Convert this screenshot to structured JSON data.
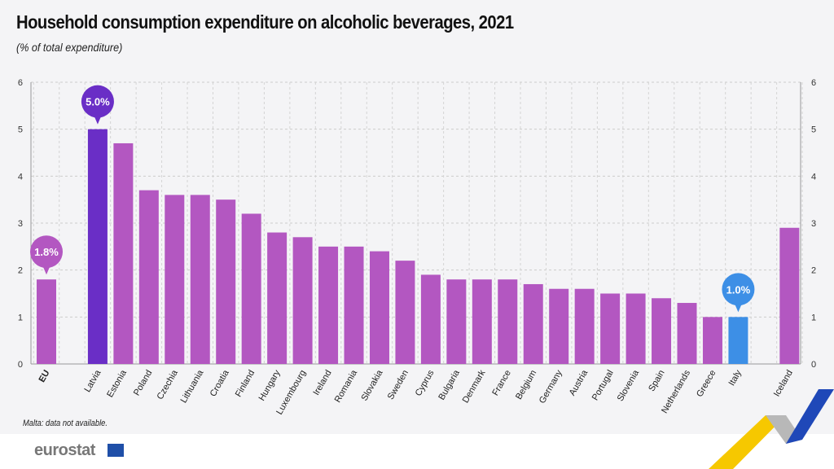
{
  "chart_data": {
    "type": "bar",
    "title": "Household consumption expenditure on alcoholic beverages, 2021",
    "subtitle": "(% of total expenditure)",
    "categories": [
      "EU",
      "Latvia",
      "Estonia",
      "Poland",
      "Czechia",
      "Lithuania",
      "Croatia",
      "Finland",
      "Hungary",
      "Luxembourg",
      "Ireland",
      "Romania",
      "Slovakia",
      "Sweden",
      "Cyprus",
      "Bulgaria",
      "Denmark",
      "France",
      "Belgium",
      "Germany",
      "Austria",
      "Portugal",
      "Slovenia",
      "Spain",
      "Netherlands",
      "Greece",
      "Italy",
      "Iceland"
    ],
    "values": [
      1.8,
      5.0,
      4.7,
      3.7,
      3.6,
      3.6,
      3.5,
      3.2,
      2.8,
      2.7,
      2.5,
      2.5,
      2.4,
      2.2,
      1.9,
      1.8,
      1.8,
      1.8,
      1.7,
      1.6,
      1.6,
      1.5,
      1.5,
      1.4,
      1.3,
      1.0,
      1.0,
      2.9
    ],
    "ylim": [
      0,
      6
    ],
    "yticks": [
      "0",
      "1",
      "2",
      "3",
      "4",
      "5",
      "6"
    ],
    "grid": true,
    "callouts": [
      {
        "category": "EU",
        "label": "1.8%"
      },
      {
        "category": "Latvia",
        "label": "5.0%"
      },
      {
        "category": "Italy",
        "label": "1.0%"
      }
    ],
    "colors": {
      "default": "#b357c1",
      "Latvia": "#6a2ec6",
      "Italy": "#3d8fe6",
      "EU": "#b357c1"
    }
  },
  "note": "Malta: data not available.",
  "logo": "eurostat"
}
